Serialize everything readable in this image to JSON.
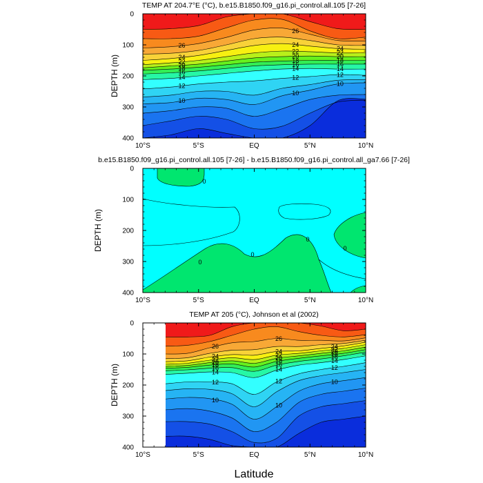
{
  "chart_data": [
    {
      "type": "contour",
      "title": "TEMP AT 204.7°E (°C), b.e15.B1850.f09_g16.pi_control.all.105 [7-26]",
      "ylabel": "DEPTH (m)",
      "xlabel": "",
      "xlim": [
        -10,
        10
      ],
      "ylim": [
        0,
        400
      ],
      "x_ticks": [
        "10°S",
        "5°S",
        "EQ",
        "5°N",
        "10°N"
      ],
      "y_ticks": [
        "0",
        "100",
        "200",
        "300",
        "400"
      ],
      "contour_labels": [
        "26",
        "24",
        "22",
        "20",
        "18",
        "16",
        "14",
        "12",
        "10",
        "26",
        "24",
        "22",
        "20",
        "18",
        "16",
        "14",
        "12",
        "10",
        "24",
        "22",
        "20",
        "18",
        "16",
        "14",
        "12",
        "10"
      ],
      "isotherm_depths": {
        "x": [
          -10,
          -7.5,
          -5,
          -2.5,
          0,
          2.5,
          5,
          7.5,
          10
        ],
        "levels": [
          {
            "t": 28,
            "d": [
              50,
              48,
              38,
              10,
              0,
              0,
              25,
              48,
              50
            ]
          },
          {
            "t": 27,
            "d": [
              80,
              80,
              72,
              45,
              20,
              18,
              55,
              80,
              75
            ]
          },
          {
            "t": 26,
            "d": [
              110,
              106,
              96,
              76,
              52,
              46,
              66,
              86,
              88
            ]
          },
          {
            "t": 25,
            "d": [
              130,
              127,
              118,
              100,
              80,
              75,
              86,
              100,
              102
            ]
          },
          {
            "t": 24,
            "d": [
              150,
              144,
              134,
              118,
              102,
              96,
              104,
              112,
              114
            ]
          },
          {
            "t": 22,
            "d": [
              164,
              158,
              150,
              138,
              126,
              120,
              122,
              126,
              126
            ]
          },
          {
            "t": 20,
            "d": [
              174,
              168,
              162,
              152,
              142,
              138,
              136,
              138,
              138
            ]
          },
          {
            "t": 18,
            "d": [
              182,
              178,
              172,
              164,
              156,
              152,
              150,
              150,
              150
            ]
          },
          {
            "t": 16,
            "d": [
              194,
              190,
              184,
              176,
              168,
              164,
              162,
              162,
              162
            ]
          },
          {
            "t": 14,
            "d": [
              212,
              208,
              200,
              192,
              184,
              178,
              176,
              178,
              178
            ]
          },
          {
            "t": 12,
            "d": [
              242,
              236,
              226,
              220,
              216,
              208,
              202,
              196,
              198
            ]
          },
          {
            "t": 11,
            "d": [
              268,
              262,
              250,
              250,
              262,
              240,
              228,
              214,
              212
            ]
          },
          {
            "t": 10,
            "d": [
              290,
              286,
              272,
              276,
              292,
              264,
              246,
              226,
              222
            ]
          },
          {
            "t": 9,
            "d": [
              320,
              312,
              300,
              304,
              330,
              306,
              276,
              262,
              260
            ]
          },
          {
            "t": 8,
            "d": [
              360,
              345,
              330,
              340,
              370,
              362,
              320,
              284,
              278
            ]
          },
          {
            "t": 7,
            "d": [
              400,
              390,
              370,
              385,
              400,
              400,
              360,
              280,
              275
            ]
          }
        ]
      }
    },
    {
      "type": "contour",
      "title": "b.e15.B1850.f09_g16.pi_control.all.105 [7-26] - b.e15.B1850.f09_g16.pi_control.all_ga7.66 [7-26]",
      "ylabel": "DEPTH (m)",
      "xlabel": "",
      "xlim": [
        -10,
        10
      ],
      "ylim": [
        0,
        400
      ],
      "x_ticks": [
        "10°S",
        "5°S",
        "EQ",
        "5°N",
        "10°N"
      ],
      "y_ticks": [
        "0",
        "100",
        "200",
        "300",
        "400"
      ],
      "contour_labels": [
        "0",
        "0",
        "0",
        "0",
        "0"
      ]
    },
    {
      "type": "contour",
      "title": "TEMP AT 205 (°C), Johnson et al (2002)",
      "ylabel": "DEPTH (m)",
      "xlabel": "Latitude",
      "xlim": [
        -10,
        10
      ],
      "ylim": [
        0,
        400
      ],
      "x_ticks": [
        "10°S",
        "5°S",
        "EQ",
        "5°N",
        "10°N"
      ],
      "y_ticks": [
        "0",
        "100",
        "200",
        "300",
        "400"
      ],
      "contour_labels": [
        "26",
        "24",
        "22",
        "20",
        "18",
        "16",
        "14",
        "12",
        "10",
        "26",
        "24",
        "22",
        "20",
        "18",
        "16",
        "14",
        "12",
        "10",
        "24",
        "22",
        "20",
        "18",
        "16",
        "14",
        "12",
        "10"
      ],
      "data_xmin": -8,
      "isotherm_depths": {
        "x": [
          -8,
          -6,
          -4,
          -2,
          0,
          2,
          4,
          6,
          8,
          10
        ],
        "levels": [
          {
            "t": 28,
            "d": [
              45,
              45,
              40,
              12,
              0,
              0,
              0,
              10,
              25,
              20
            ]
          },
          {
            "t": 27,
            "d": [
              75,
              72,
              60,
              40,
              20,
              12,
              28,
              40,
              45,
              38
            ]
          },
          {
            "t": 26,
            "d": [
              100,
              98,
              80,
              64,
              60,
              50,
              56,
              56,
              58,
              48
            ]
          },
          {
            "t": 25,
            "d": [
              115,
              112,
              98,
              88,
              86,
              76,
              76,
              70,
              66,
              56
            ]
          },
          {
            "t": 24,
            "d": [
              125,
              122,
              110,
              102,
              104,
              92,
              90,
              82,
              74,
              62
            ]
          },
          {
            "t": 22,
            "d": [
              133,
              130,
              120,
              112,
              118,
              104,
              98,
              90,
              82,
              70
            ]
          },
          {
            "t": 20,
            "d": [
              140,
              137,
              128,
              122,
              130,
              114,
              106,
              98,
              90,
              78
            ]
          },
          {
            "t": 18,
            "d": [
              146,
              143,
              136,
              132,
              142,
              124,
              114,
              106,
              98,
              86
            ]
          },
          {
            "t": 16,
            "d": [
              154,
              151,
              146,
              144,
              156,
              136,
              124,
              116,
              106,
              94
            ]
          },
          {
            "t": 14,
            "d": [
              166,
              162,
              158,
              160,
              176,
              152,
              136,
              128,
              118,
              106
            ]
          },
          {
            "t": 12,
            "d": [
              196,
              190,
              190,
              196,
              230,
              190,
              164,
              150,
              140,
              128
            ]
          },
          {
            "t": 11,
            "d": [
              218,
              212,
              214,
              228,
              270,
              222,
              186,
              170,
              160,
              150
            ]
          },
          {
            "t": 10,
            "d": [
              245,
              240,
              244,
              262,
              310,
              270,
              220,
              196,
              186,
              176
            ]
          },
          {
            "t": 9,
            "d": [
              280,
              276,
              284,
              306,
              350,
              320,
              256,
              230,
              220,
              210
            ]
          },
          {
            "t": 8,
            "d": [
              318,
              318,
              326,
              350,
              385,
              372,
              300,
              270,
              260,
              250
            ]
          },
          {
            "t": 7,
            "d": [
              365,
              365,
              375,
              395,
              400,
              400,
              356,
              320,
              310,
              300
            ]
          }
        ]
      }
    }
  ]
}
